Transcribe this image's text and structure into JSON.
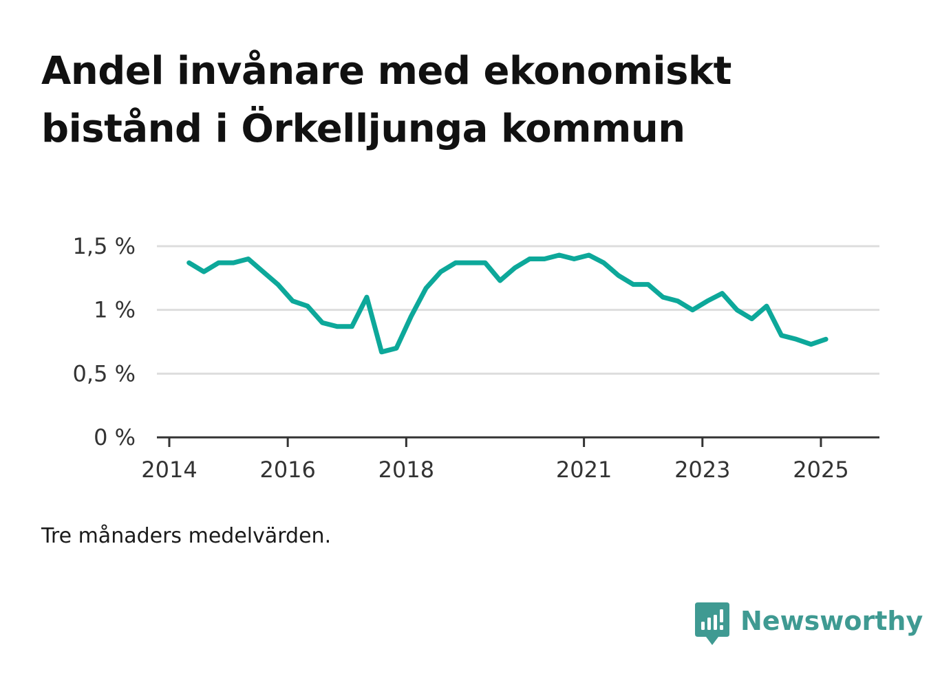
{
  "title": "Andel invånare med ekonomiskt bistånd i Örkelljunga kommun",
  "caption": "Tre månaders medelvärden.",
  "brand": {
    "name": "Newsworthy",
    "logo_icon": "bar-chart-speech-bubble-icon",
    "color": "#3f9a92"
  },
  "colors": {
    "line": "#0da89a",
    "grid": "#dddddd",
    "axis": "#333333"
  },
  "chart_data": {
    "type": "line",
    "title": "Andel invånare med ekonomiskt bistånd i Örkelljunga kommun",
    "xlabel": "",
    "ylabel": "",
    "x_ticks": [
      "2014",
      "2016",
      "2018",
      "2021",
      "2023",
      "2025"
    ],
    "y_ticks": [
      "0 %",
      "0,5 %",
      "1 %",
      "1,5 %"
    ],
    "y_tick_values": [
      0,
      0.5,
      1,
      1.5
    ],
    "ylim": [
      0,
      1.5
    ],
    "xlim": [
      "2014-01",
      "2025-07"
    ],
    "grid": true,
    "series": [
      {
        "x": [
          "2014-05",
          "2014-08",
          "2014-11",
          "2015-02",
          "2015-05",
          "2015-08",
          "2015-11",
          "2016-02",
          "2016-05",
          "2016-08",
          "2016-11",
          "2017-02",
          "2017-05",
          "2017-08",
          "2017-11",
          "2018-02",
          "2018-05",
          "2018-08",
          "2018-11",
          "2019-02",
          "2019-05",
          "2019-08",
          "2019-11",
          "2020-02",
          "2020-05",
          "2020-08",
          "2020-11",
          "2021-02",
          "2021-05",
          "2021-08",
          "2021-11",
          "2022-02",
          "2022-05",
          "2022-08",
          "2022-11",
          "2023-02",
          "2023-05",
          "2023-08",
          "2023-11",
          "2024-02",
          "2024-05",
          "2024-08",
          "2024-11",
          "2025-02"
        ],
        "values": [
          1.37,
          1.3,
          1.37,
          1.37,
          1.4,
          1.3,
          1.2,
          1.07,
          1.03,
          0.9,
          0.87,
          0.87,
          1.1,
          0.67,
          0.7,
          0.95,
          1.17,
          1.3,
          1.37,
          1.37,
          1.37,
          1.23,
          1.33,
          1.4,
          1.4,
          1.43,
          1.4,
          1.43,
          1.37,
          1.27,
          1.2,
          1.2,
          1.1,
          1.07,
          1.0,
          1.07,
          1.13,
          1.0,
          0.93,
          1.03,
          0.8,
          0.77,
          0.73,
          0.77
        ]
      }
    ]
  }
}
